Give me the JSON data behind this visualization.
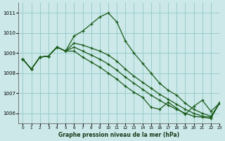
{
  "title": "Graphe pression niveau de la mer (hPa)",
  "bg_color": "#cce8e8",
  "grid_color": "#99cccc",
  "line_color": "#1a5c1a",
  "xlim": [
    -0.5,
    23
  ],
  "ylim": [
    1005.5,
    1011.5
  ],
  "yticks": [
    1006,
    1007,
    1008,
    1009,
    1010,
    1011
  ],
  "xticks": [
    0,
    1,
    2,
    3,
    4,
    5,
    6,
    7,
    8,
    9,
    10,
    11,
    12,
    13,
    14,
    15,
    16,
    17,
    18,
    19,
    20,
    21,
    22,
    23
  ],
  "series": [
    [
      1008.7,
      1008.2,
      1008.8,
      1008.85,
      1009.3,
      1009.1,
      1009.85,
      1010.1,
      1010.45,
      1010.8,
      1011.0,
      1010.55,
      1009.6,
      1009.0,
      1008.5,
      1008.0,
      1007.5,
      1007.15,
      1006.9,
      1006.5,
      1006.2,
      1006.0,
      1005.85,
      1006.5
    ],
    [
      1008.7,
      1008.2,
      1008.8,
      1008.85,
      1009.3,
      1009.1,
      1009.5,
      1009.4,
      1009.25,
      1009.1,
      1008.9,
      1008.6,
      1008.2,
      1007.85,
      1007.55,
      1007.25,
      1006.95,
      1006.7,
      1006.45,
      1006.2,
      1006.0,
      1005.85,
      1005.8,
      1006.5
    ],
    [
      1008.7,
      1008.2,
      1008.8,
      1008.85,
      1009.3,
      1009.1,
      1009.3,
      1009.1,
      1008.9,
      1008.7,
      1008.45,
      1008.15,
      1007.8,
      1007.5,
      1007.2,
      1006.9,
      1006.65,
      1006.4,
      1006.2,
      1006.0,
      1005.85,
      1005.8,
      1005.75,
      1006.5
    ],
    [
      1008.7,
      1008.2,
      1008.8,
      1008.85,
      1009.3,
      1009.1,
      1009.1,
      1008.8,
      1008.55,
      1008.3,
      1008.0,
      1007.7,
      1007.35,
      1007.05,
      1006.8,
      1006.3,
      1006.2,
      1006.55,
      1006.25,
      1005.95,
      1006.35,
      1006.65,
      1006.1,
      1006.5
    ]
  ]
}
